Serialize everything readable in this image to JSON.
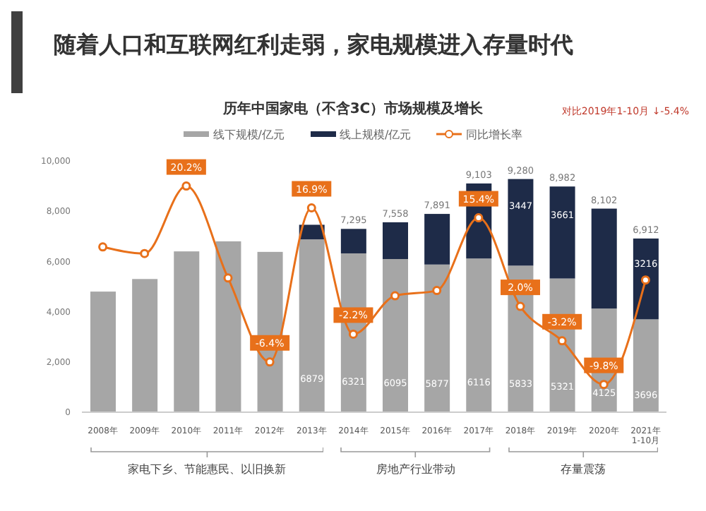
{
  "chart_data": {
    "type": "bar",
    "title": "随着人口和互联网红利走弱，家电规模进入存量时代",
    "subtitle": "历年中国家电（不含3C）市场规模及增长",
    "categories": [
      "2008年",
      "2009年",
      "2010年",
      "2011年",
      "2012年",
      "2013年",
      "2014年",
      "2015年",
      "2016年",
      "2017年",
      "2018年",
      "2019年",
      "2020年",
      "2021年1-10月"
    ],
    "stacked": true,
    "legend": "top",
    "marker": "circle",
    "ylim": [
      0,
      10000
    ],
    "yticks": [
      0,
      {
        "value": 2000,
        "label": "2,000"
      },
      {
        "value": 4000,
        "label": "4,000"
      },
      {
        "value": 6000,
        "label": "6,000"
      },
      {
        "value": 8000,
        "label": "8,000"
      },
      {
        "value": 10000,
        "label": "10,000"
      }
    ],
    "y2lim": [
      -14,
      24
    ],
    "series": [
      {
        "name": "线下规模/亿元",
        "color": "#a6a6a6",
        "values": [
          4800,
          5300,
          6400,
          6800,
          6380,
          6879,
          6321,
          6095,
          5877,
          6116,
          5833,
          5321,
          4125,
          3696
        ],
        "value_labels": [
          null,
          null,
          null,
          null,
          null,
          "6879",
          "6321",
          "6095",
          "5877",
          "6116",
          "5833",
          "5321",
          "4125",
          "3696"
        ]
      },
      {
        "name": "线上规模/亿元",
        "color": "#1e2b48",
        "values": [
          null,
          null,
          null,
          null,
          null,
          580,
          974,
          1463,
          2014,
          2987,
          3447,
          3661,
          3977,
          3216
        ],
        "value_labels": [
          null,
          null,
          null,
          null,
          null,
          null,
          null,
          null,
          null,
          null,
          "3447",
          "3661",
          null,
          "3216"
        ]
      },
      {
        "name": "同比增长率",
        "type": "line",
        "axis": "y2",
        "color": "#e8701a",
        "values": [
          11,
          10,
          20.2,
          6.3,
          -6.4,
          16.9,
          -2.2,
          3.6,
          4.4,
          15.4,
          2.0,
          -3.2,
          -9.8,
          6
        ],
        "value_labels": [
          null,
          null,
          "20.2%",
          null,
          "-6.4%",
          "16.9%",
          "-2.2%",
          null,
          null,
          "15.4%",
          "2.0%",
          "-3.2%",
          "-9.8%",
          null
        ]
      }
    ],
    "totals": [
      null,
      null,
      null,
      null,
      null,
      null,
      "7,295",
      "7,558",
      "7,891",
      "9,103",
      "9,280",
      "8,982",
      "8,102",
      "6,912"
    ],
    "annotations": [
      "家电下乡、节能惠民、以旧换新",
      "房地产行业带动",
      "存量震荡",
      "对比2019年1-10月 ↓-5.4%"
    ]
  }
}
